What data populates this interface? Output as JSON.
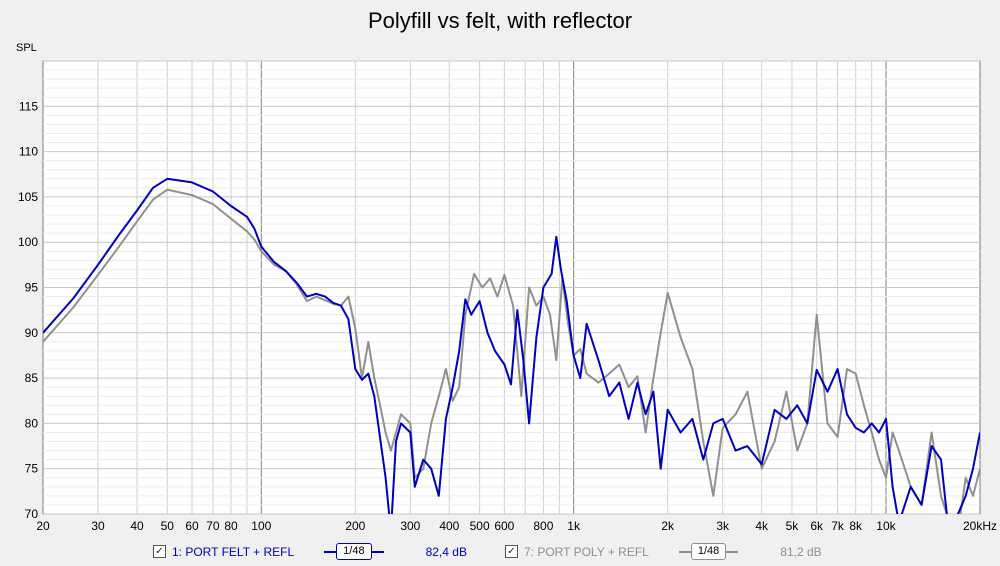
{
  "chart_data": {
    "type": "line",
    "title": "Polyfill vs felt, with reflector",
    "ylabel": "SPL",
    "xscale": "log",
    "xlim": [
      20,
      20000
    ],
    "ylim": [
      70,
      120
    ],
    "y_ticks": [
      "115",
      "110",
      "105",
      "100",
      "95",
      "90",
      "85",
      "80",
      "75",
      "70"
    ],
    "x_ticks": [
      {
        "v": 20,
        "t": "20"
      },
      {
        "v": 30,
        "t": "30"
      },
      {
        "v": 40,
        "t": "40"
      },
      {
        "v": 50,
        "t": "50"
      },
      {
        "v": 60,
        "t": "60"
      },
      {
        "v": 70,
        "t": "70"
      },
      {
        "v": 80,
        "t": "80"
      },
      {
        "v": 100,
        "t": "100"
      },
      {
        "v": 200,
        "t": "200"
      },
      {
        "v": 300,
        "t": "300"
      },
      {
        "v": 400,
        "t": "400"
      },
      {
        "v": 500,
        "t": "500"
      },
      {
        "v": 600,
        "t": "600"
      },
      {
        "v": 800,
        "t": "800"
      },
      {
        "v": 1000,
        "t": "1k"
      },
      {
        "v": 2000,
        "t": "2k"
      },
      {
        "v": 3000,
        "t": "3k"
      },
      {
        "v": 4000,
        "t": "4k"
      },
      {
        "v": 5000,
        "t": "5k"
      },
      {
        "v": 6000,
        "t": "6k"
      },
      {
        "v": 7000,
        "t": "7k"
      },
      {
        "v": 8000,
        "t": "8k"
      },
      {
        "v": 10000,
        "t": "10k"
      },
      {
        "v": 20000,
        "t": "20kHz"
      }
    ],
    "grid": true,
    "series": [
      {
        "name": "1: PORT FELT + REFL",
        "color": "#0000c0",
        "points": [
          [
            20,
            90
          ],
          [
            25,
            93.8
          ],
          [
            30,
            97.5
          ],
          [
            35,
            100.8
          ],
          [
            40,
            103.5
          ],
          [
            45,
            106
          ],
          [
            50,
            107
          ],
          [
            60,
            106.6
          ],
          [
            70,
            105.6
          ],
          [
            80,
            104
          ],
          [
            90,
            102.8
          ],
          [
            95,
            101.5
          ],
          [
            100,
            99.5
          ],
          [
            110,
            97.8
          ],
          [
            120,
            96.8
          ],
          [
            130,
            95.5
          ],
          [
            140,
            94
          ],
          [
            150,
            94.3
          ],
          [
            160,
            94
          ],
          [
            170,
            93.3
          ],
          [
            180,
            93
          ],
          [
            190,
            91.5
          ],
          [
            200,
            86
          ],
          [
            210,
            84.8
          ],
          [
            220,
            85.5
          ],
          [
            230,
            83
          ],
          [
            250,
            74
          ],
          [
            260,
            68
          ],
          [
            270,
            78
          ],
          [
            280,
            80
          ],
          [
            300,
            79
          ],
          [
            310,
            73
          ],
          [
            330,
            76
          ],
          [
            350,
            75
          ],
          [
            370,
            72
          ],
          [
            390,
            80.5
          ],
          [
            410,
            84
          ],
          [
            430,
            88
          ],
          [
            450,
            93.7
          ],
          [
            470,
            92
          ],
          [
            500,
            93.5
          ],
          [
            530,
            90
          ],
          [
            560,
            88
          ],
          [
            600,
            86.5
          ],
          [
            630,
            84.3
          ],
          [
            660,
            92.5
          ],
          [
            690,
            87
          ],
          [
            720,
            80
          ],
          [
            760,
            89.5
          ],
          [
            800,
            95
          ],
          [
            850,
            96.5
          ],
          [
            880,
            100.6
          ],
          [
            910,
            97
          ],
          [
            950,
            93.5
          ],
          [
            1000,
            87.5
          ],
          [
            1050,
            85
          ],
          [
            1100,
            91
          ],
          [
            1200,
            87
          ],
          [
            1300,
            83
          ],
          [
            1400,
            84.5
          ],
          [
            1500,
            80.5
          ],
          [
            1600,
            84.5
          ],
          [
            1700,
            81
          ],
          [
            1800,
            83.5
          ],
          [
            1900,
            75
          ],
          [
            2000,
            81.5
          ],
          [
            2200,
            79
          ],
          [
            2400,
            80.5
          ],
          [
            2600,
            76
          ],
          [
            2800,
            80
          ],
          [
            3000,
            80.5
          ],
          [
            3300,
            77
          ],
          [
            3600,
            77.5
          ],
          [
            4000,
            75.5
          ],
          [
            4400,
            81.5
          ],
          [
            4800,
            80.5
          ],
          [
            5200,
            82
          ],
          [
            5600,
            80
          ],
          [
            6000,
            85.9
          ],
          [
            6500,
            83.5
          ],
          [
            7000,
            86
          ],
          [
            7500,
            81
          ],
          [
            8000,
            79.5
          ],
          [
            8500,
            79
          ],
          [
            9000,
            80
          ],
          [
            9500,
            79
          ],
          [
            10000,
            80.5
          ],
          [
            10500,
            73
          ],
          [
            11000,
            69
          ],
          [
            12000,
            73
          ],
          [
            13000,
            71
          ],
          [
            14000,
            77.5
          ],
          [
            15000,
            76
          ],
          [
            16000,
            67
          ],
          [
            17000,
            70
          ],
          [
            18000,
            72
          ],
          [
            19000,
            75
          ],
          [
            20000,
            79
          ]
        ]
      },
      {
        "name": "7: PORT POLY + REFL",
        "color": "#909090",
        "points": [
          [
            20,
            89
          ],
          [
            25,
            92.8
          ],
          [
            30,
            96.4
          ],
          [
            35,
            99.5
          ],
          [
            40,
            102.3
          ],
          [
            45,
            104.7
          ],
          [
            50,
            105.8
          ],
          [
            60,
            105.2
          ],
          [
            70,
            104.2
          ],
          [
            80,
            102.6
          ],
          [
            90,
            101.2
          ],
          [
            95,
            100.3
          ],
          [
            100,
            99
          ],
          [
            110,
            97.5
          ],
          [
            120,
            96.8
          ],
          [
            130,
            95.3
          ],
          [
            140,
            93.5
          ],
          [
            150,
            94
          ],
          [
            160,
            93.6
          ],
          [
            170,
            93.2
          ],
          [
            180,
            93
          ],
          [
            190,
            94
          ],
          [
            200,
            90.5
          ],
          [
            210,
            85
          ],
          [
            220,
            89
          ],
          [
            230,
            85
          ],
          [
            240,
            82
          ],
          [
            250,
            79
          ],
          [
            260,
            77
          ],
          [
            270,
            79
          ],
          [
            280,
            81
          ],
          [
            300,
            80
          ],
          [
            310,
            74
          ],
          [
            330,
            75
          ],
          [
            350,
            80
          ],
          [
            370,
            83
          ],
          [
            390,
            86
          ],
          [
            410,
            82.5
          ],
          [
            430,
            84
          ],
          [
            450,
            92
          ],
          [
            480,
            96.5
          ],
          [
            510,
            95
          ],
          [
            540,
            96
          ],
          [
            570,
            94
          ],
          [
            600,
            96.4
          ],
          [
            640,
            93
          ],
          [
            680,
            83
          ],
          [
            720,
            95
          ],
          [
            760,
            93
          ],
          [
            800,
            94
          ],
          [
            840,
            92
          ],
          [
            880,
            87
          ],
          [
            920,
            96
          ],
          [
            960,
            91
          ],
          [
            1000,
            87.5
          ],
          [
            1050,
            88.2
          ],
          [
            1100,
            85.5
          ],
          [
            1200,
            84.5
          ],
          [
            1300,
            85.5
          ],
          [
            1400,
            86.5
          ],
          [
            1500,
            84
          ],
          [
            1600,
            85.2
          ],
          [
            1700,
            79
          ],
          [
            1800,
            85
          ],
          [
            1900,
            90
          ],
          [
            2000,
            94.4
          ],
          [
            2200,
            89.5
          ],
          [
            2400,
            86
          ],
          [
            2600,
            78
          ],
          [
            2800,
            72
          ],
          [
            3000,
            79.5
          ],
          [
            3300,
            81
          ],
          [
            3600,
            83.5
          ],
          [
            4000,
            75
          ],
          [
            4400,
            78
          ],
          [
            4800,
            83.5
          ],
          [
            5200,
            77
          ],
          [
            5600,
            80
          ],
          [
            6000,
            92
          ],
          [
            6500,
            80
          ],
          [
            7000,
            78.5
          ],
          [
            7500,
            86
          ],
          [
            8000,
            85.5
          ],
          [
            8500,
            82
          ],
          [
            9000,
            79
          ],
          [
            9500,
            76
          ],
          [
            10000,
            74
          ],
          [
            10500,
            79
          ],
          [
            11000,
            77
          ],
          [
            12000,
            73
          ],
          [
            13000,
            71
          ],
          [
            14000,
            79
          ],
          [
            15000,
            72
          ],
          [
            16000,
            69
          ],
          [
            17000,
            68
          ],
          [
            18000,
            74
          ],
          [
            19000,
            72
          ],
          [
            20000,
            75
          ]
        ]
      }
    ]
  },
  "legend": {
    "items": [
      {
        "label": "1: PORT FELT + REFL",
        "smoothing": "1/48",
        "value": "82,4 dB",
        "color": "#0000c0"
      },
      {
        "label": "7: PORT POLY + REFL",
        "smoothing": "1/48",
        "value": "81,2 dB",
        "color": "#909090"
      }
    ]
  }
}
